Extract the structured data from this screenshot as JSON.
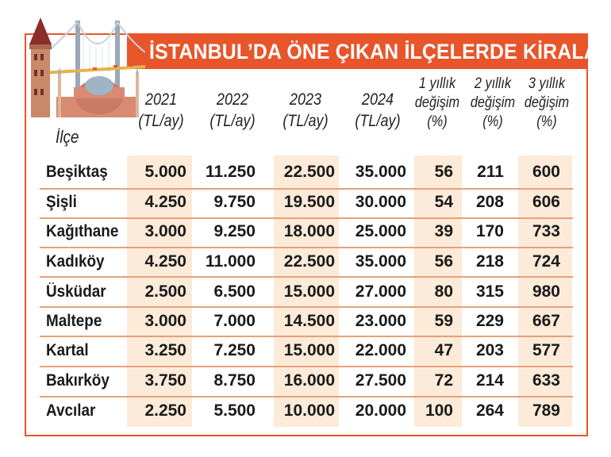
{
  "title": "İSTANBUL’DA ÖNE ÇIKAN İLÇELERDE KİRALAR",
  "colors": {
    "accent": "#e8552a",
    "shade": "#fcebd9"
  },
  "illustration": "istanbul-landmarks-bridge-galata-hagia-sophia",
  "headers": {
    "district": "İlçe",
    "columns": [
      [
        "2021",
        "(TL/ay)"
      ],
      [
        "2022",
        "(TL/ay)"
      ],
      [
        "2023",
        "(TL/ay)"
      ],
      [
        "2024",
        "(TL/ay)"
      ],
      [
        "1 yıllık",
        "değişim",
        "(%)"
      ],
      [
        "2 yıllık",
        "değişim",
        "(%)"
      ],
      [
        "3 yıllık",
        "değişim",
        "(%)"
      ]
    ]
  },
  "chart_data": {
    "type": "table",
    "title": "İSTANBUL’DA ÖNE ÇIKAN İLÇELERDE KİRALAR",
    "columns": [
      "İlçe",
      "2021 (TL/ay)",
      "2022 (TL/ay)",
      "2023 (TL/ay)",
      "2024 (TL/ay)",
      "1 yıllık değişim (%)",
      "2 yıllık değişim (%)",
      "3 yıllık değişim (%)"
    ],
    "rows": [
      [
        "Beşiktaş",
        "5.000",
        "11.250",
        "22.500",
        "35.000",
        "56",
        "211",
        "600"
      ],
      [
        "Şişli",
        "4.250",
        "9.750",
        "19.500",
        "30.000",
        "54",
        "208",
        "606"
      ],
      [
        "Kağıthane",
        "3.000",
        "9.250",
        "18.000",
        "25.000",
        "39",
        "170",
        "733"
      ],
      [
        "Kadıköy",
        "4.250",
        "11.000",
        "22.500",
        "35.000",
        "56",
        "218",
        "724"
      ],
      [
        "Üsküdar",
        "2.500",
        "6.500",
        "15.000",
        "27.000",
        "80",
        "315",
        "980"
      ],
      [
        "Maltepe",
        "3.000",
        "7.000",
        "14.500",
        "23.000",
        "59",
        "229",
        "667"
      ],
      [
        "Kartal",
        "3.250",
        "7.250",
        "15.000",
        "22.000",
        "47",
        "203",
        "577"
      ],
      [
        "Bakırköy",
        "3.750",
        "8.750",
        "16.000",
        "27.500",
        "72",
        "214",
        "633"
      ],
      [
        "Avcılar",
        "2.250",
        "5.500",
        "10.000",
        "20.000",
        "100",
        "264",
        "789"
      ]
    ]
  }
}
